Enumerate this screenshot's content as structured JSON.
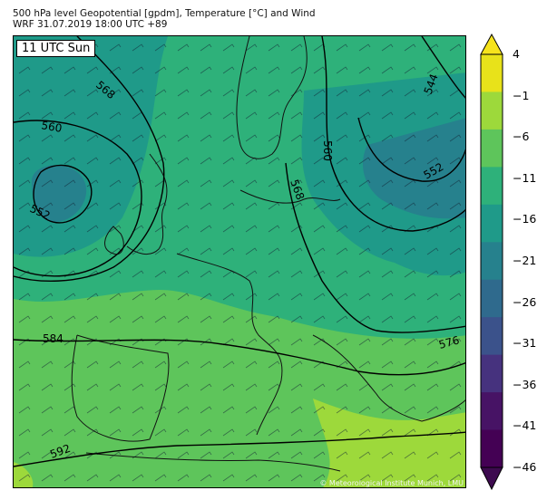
{
  "header": {
    "line1": "500 hPa level Geopotential [gpdm], Temperature [°C] and Wind",
    "line2": "WRF 31.07.2019 18:00 UTC +89"
  },
  "time_badge": "11 UTC Sun",
  "copyright": "© Meteorological Institute Munich, LMU",
  "contour_labels": [
    "568",
    "560",
    "552",
    "544",
    "560",
    "552",
    "568",
    "584",
    "576",
    "592"
  ],
  "colorbar": {
    "ticks": [
      "4",
      "−1",
      "−6",
      "−11",
      "−16",
      "−21",
      "−26",
      "−31",
      "−36",
      "−41",
      "−46"
    ],
    "colors_top_to_bottom": [
      "#e8e21a",
      "#9dd93b",
      "#5ec55b",
      "#2eb17a",
      "#1f9a89",
      "#26818d",
      "#2f6a8d",
      "#3b528b",
      "#46327e",
      "#471365",
      "#440154"
    ],
    "extend_top_color": "#f6e31c",
    "extend_bottom_color": "#3d0a4f"
  },
  "palette": {
    "warm_band": "#9dd93b",
    "mid_green": "#5ec55b",
    "teal_green": "#2eb17a",
    "teal": "#1f9a89",
    "blue_teal": "#26818d"
  }
}
